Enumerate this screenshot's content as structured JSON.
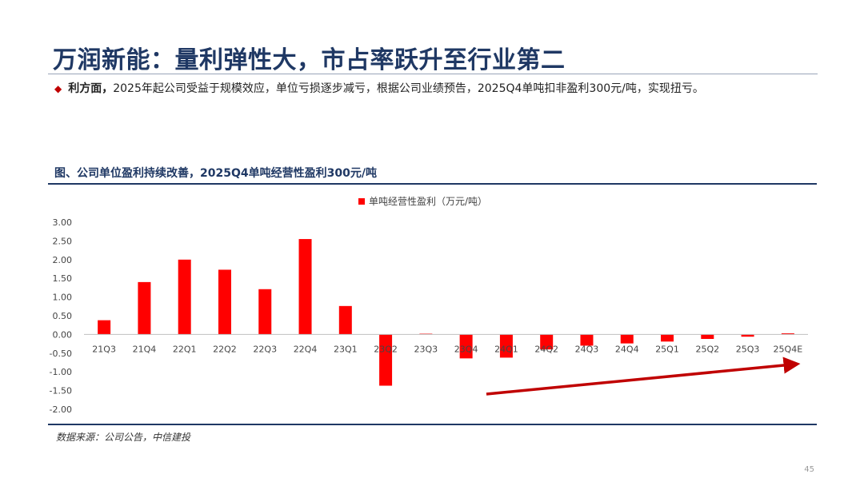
{
  "header": {
    "title": "万润新能：量利弹性大，市占率跃升至行业第二"
  },
  "bullet": {
    "lead": "利方面，",
    "text": "2025年起公司受益于规模效应，单位亏损逐步减亏，根据公司业绩预告，2025Q4单吨扣非盈利300元/吨，实现扭亏。"
  },
  "figure": {
    "title": "图、公司单位盈利持续改善，2025Q4单吨经营性盈利300元/吨"
  },
  "chart_data": {
    "type": "bar",
    "categories": [
      "21Q3",
      "21Q4",
      "22Q1",
      "22Q2",
      "22Q3",
      "22Q4",
      "23Q1",
      "23Q2",
      "23Q3",
      "23Q4",
      "24Q1",
      "24Q2",
      "24Q3",
      "24Q4",
      "25Q1",
      "25Q2",
      "25Q3",
      "25Q4E"
    ],
    "series": [
      {
        "name": "单吨经营性盈利（万元/吨）",
        "color": "#ff0000",
        "values": [
          0.38,
          1.4,
          2.0,
          1.73,
          1.21,
          2.55,
          0.76,
          -1.37,
          0.02,
          -0.64,
          -0.62,
          -0.4,
          -0.3,
          -0.24,
          -0.19,
          -0.12,
          -0.06,
          0.03
        ]
      }
    ],
    "yticks": [
      "3.00",
      "2.50",
      "2.00",
      "1.50",
      "1.00",
      "0.50",
      "0.00",
      "-0.50",
      "-1.00",
      "-1.50",
      "-2.00"
    ],
    "ylim": [
      -2.0,
      3.0
    ],
    "grid": false,
    "legend": "top-center",
    "annotation": "trend-arrow-up",
    "arrow_color": "#c00000"
  },
  "footer": {
    "source": "数据来源：公司公告，中信建投",
    "page": "45"
  }
}
